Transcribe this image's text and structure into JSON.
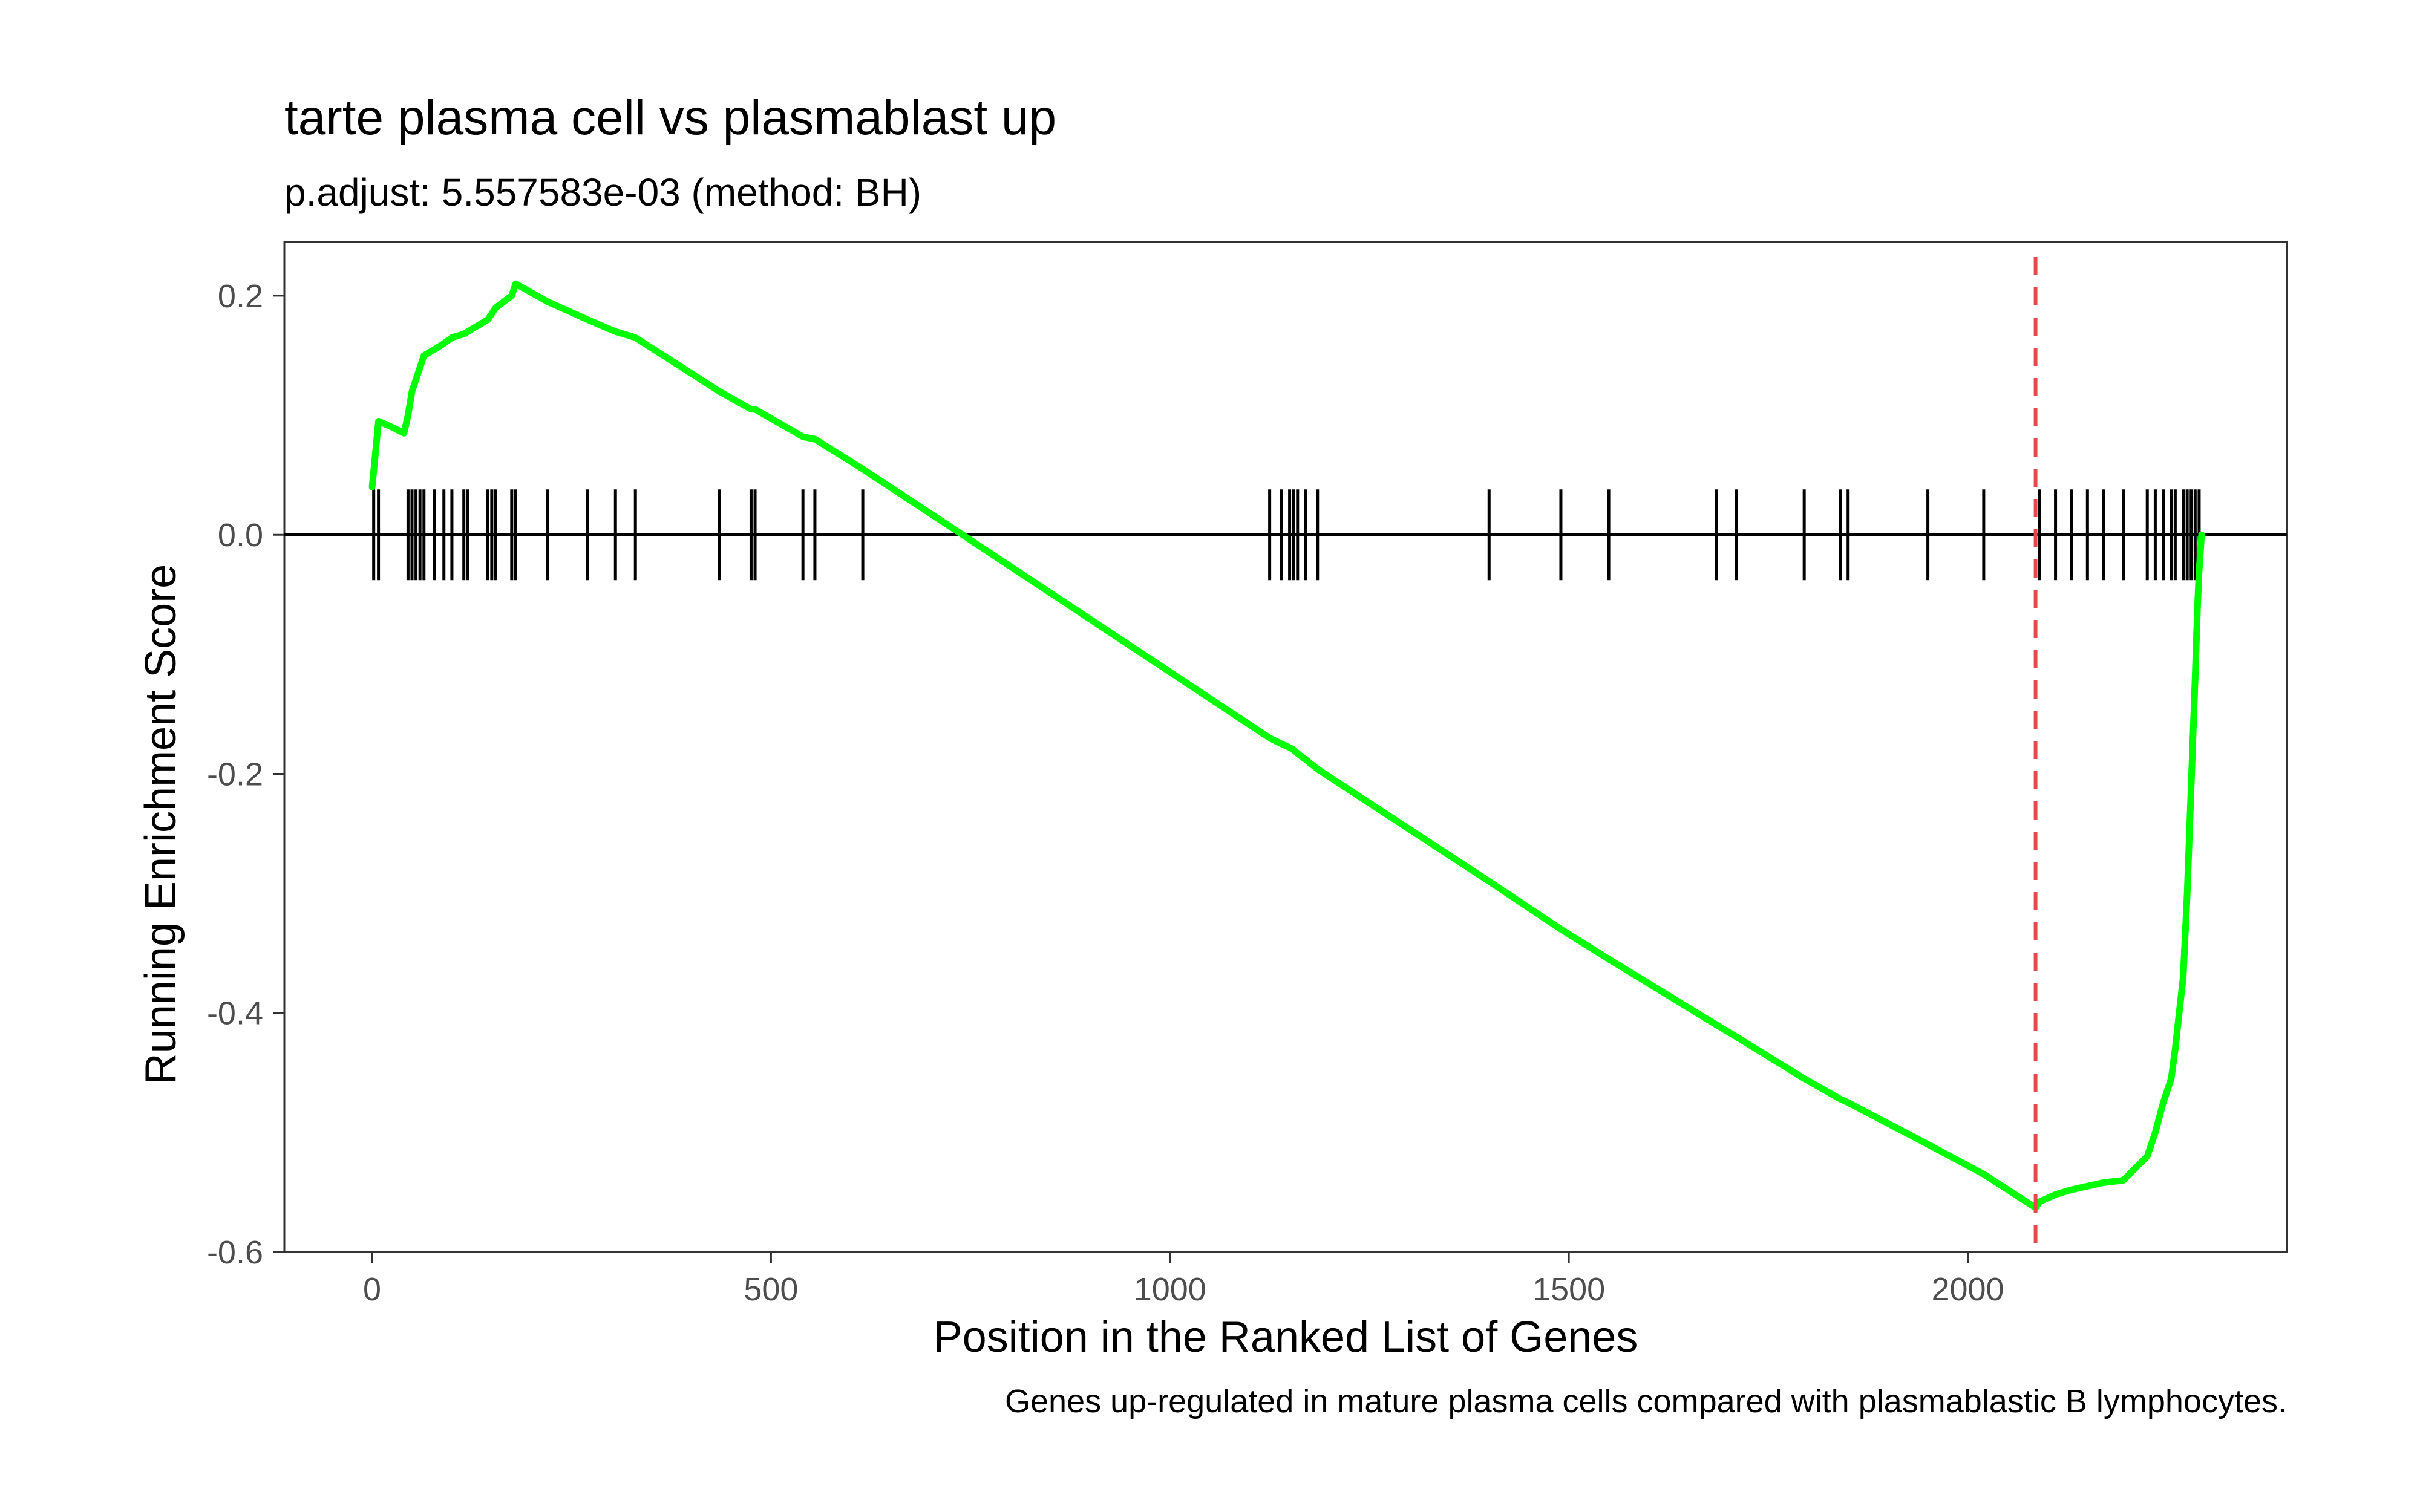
{
  "chart_data": {
    "type": "line",
    "title": "tarte plasma cell vs plasmablast up",
    "subtitle": "p.adjust: 5.557583e-03 (method: BH)",
    "xlabel": "Position in the Ranked List of Genes",
    "ylabel": "Running Enrichment Score",
    "caption": "Genes up-regulated in mature plasma cells compared with plasmablastic B lymphocytes.",
    "xlim": [
      -110,
      2400
    ],
    "ylim": [
      -0.6,
      0.245
    ],
    "x_ticks": [
      0,
      500,
      1000,
      1500,
      2000
    ],
    "x_tick_labels": [
      "0",
      "500",
      "1000",
      "1500",
      "2000"
    ],
    "y_ticks": [
      -0.6,
      -0.4,
      -0.2,
      0.0,
      0.2
    ],
    "y_tick_labels": [
      "-0.6",
      "-0.4",
      "-0.2",
      "0.0",
      "0.2"
    ],
    "grid": false,
    "line_color": "#00ff00",
    "hline_y": 0,
    "max_deviation_x": 2085,
    "max_deviation_color": "#e8474b",
    "hit_positions": [
      2,
      8,
      45,
      50,
      55,
      60,
      65,
      78,
      90,
      100,
      115,
      120,
      145,
      150,
      155,
      175,
      180,
      220,
      270,
      305,
      330,
      435,
      475,
      480,
      540,
      555,
      615,
      1125,
      1140,
      1150,
      1155,
      1160,
      1170,
      1185,
      1400,
      1490,
      1550,
      1685,
      1710,
      1795,
      1840,
      1850,
      1950,
      2020,
      2090,
      2110,
      2130,
      2150,
      2170,
      2195,
      2225,
      2235,
      2245,
      2255,
      2260,
      2270,
      2275,
      2280,
      2285,
      2290
    ],
    "series": [
      {
        "x": [
          0,
          3,
          8,
          25,
          40,
          45,
          50,
          55,
          60,
          65,
          78,
          90,
          100,
          115,
          120,
          145,
          150,
          155,
          175,
          180,
          220,
          270,
          305,
          330,
          435,
          475,
          480,
          540,
          555,
          615,
          740,
          1125,
          1140,
          1150,
          1155,
          1160,
          1170,
          1185,
          1400,
          1490,
          1550,
          1685,
          1710,
          1795,
          1840,
          1850,
          1950,
          2020,
          2085,
          2090,
          2110,
          2130,
          2150,
          2170,
          2195,
          2225,
          2235,
          2245,
          2255,
          2260,
          2270,
          2275,
          2280,
          2285,
          2288,
          2290,
          2293
        ],
        "y": [
          0.04,
          0.06,
          0.095,
          0.09,
          0.085,
          0.1,
          0.12,
          0.13,
          0.14,
          0.15,
          0.155,
          0.16,
          0.165,
          0.168,
          0.17,
          0.18,
          0.185,
          0.19,
          0.2,
          0.21,
          0.195,
          0.18,
          0.17,
          0.165,
          0.12,
          0.105,
          0.105,
          0.082,
          0.08,
          0.055,
          0.0,
          -0.17,
          -0.175,
          -0.178,
          -0.18,
          -0.183,
          -0.188,
          -0.196,
          -0.29,
          -0.33,
          -0.355,
          -0.41,
          -0.42,
          -0.455,
          -0.472,
          -0.475,
          -0.51,
          -0.535,
          -0.563,
          -0.558,
          -0.552,
          -0.548,
          -0.545,
          -0.542,
          -0.54,
          -0.52,
          -0.5,
          -0.475,
          -0.455,
          -0.43,
          -0.37,
          -0.3,
          -0.21,
          -0.12,
          -0.06,
          -0.03,
          0.0
        ]
      }
    ]
  }
}
